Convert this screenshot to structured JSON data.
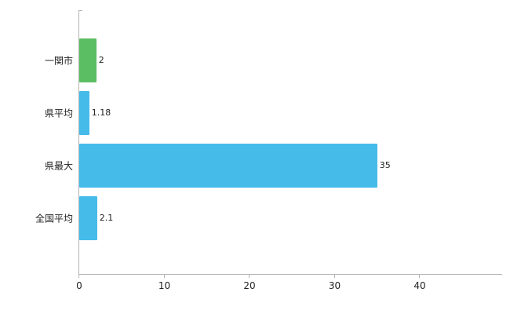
{
  "chart_data": {
    "type": "bar",
    "orientation": "horizontal",
    "title": "",
    "xlabel": "",
    "ylabel": "",
    "categories": [
      "一関市",
      "県平均",
      "県最大",
      "全国平均"
    ],
    "values": [
      2,
      1.18,
      35,
      2.1
    ],
    "value_labels": [
      "2",
      "1.18",
      "35",
      "2.1"
    ],
    "bar_colors": [
      "#5cbe62",
      "#45bbea",
      "#45bbea",
      "#45bbea"
    ],
    "xlim": [
      0,
      40
    ],
    "xticks": [
      0,
      10,
      20,
      30,
      40
    ],
    "grid": false,
    "legend": false,
    "axis_color": "#b3b3b3",
    "text_color": "#222222",
    "background_color": "#ffffff"
  }
}
